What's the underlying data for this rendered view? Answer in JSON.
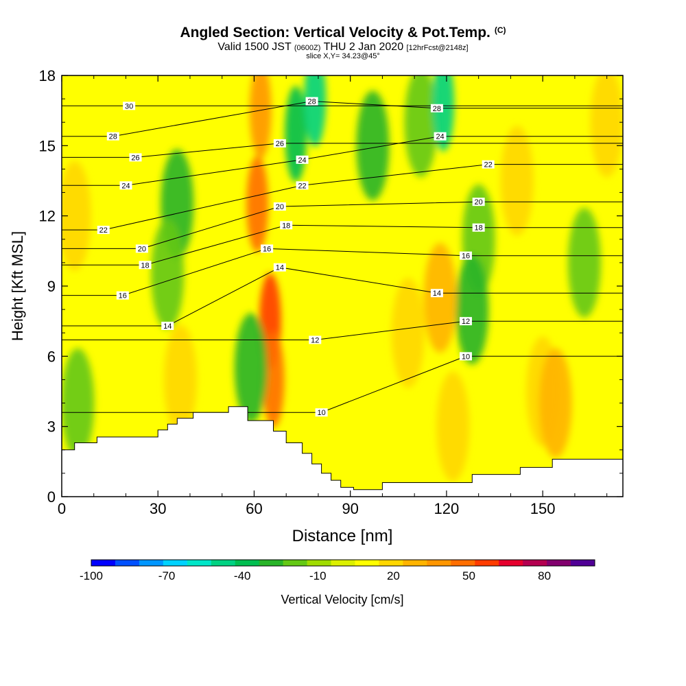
{
  "header": {
    "title": "Angled Section: Vertical Velocity & Pot.Temp.",
    "title_units": "(C)",
    "valid_prefix": "Valid 1500 JST",
    "valid_utc": "(0600Z)",
    "valid_date": "THU 2 Jan 2020",
    "forecast_info": "[12hrFcst@2148z]",
    "slice_info": "slice X,Y= 34.23@45°"
  },
  "chart_data": {
    "type": "heatmap",
    "xlabel": "Distance [nm]",
    "ylabel": "Height [Kft MSL]",
    "xlim": [
      0,
      175
    ],
    "ylim": [
      0,
      18
    ],
    "x_ticks": [
      0,
      30,
      60,
      90,
      120,
      150
    ],
    "y_ticks": [
      0,
      3,
      6,
      9,
      12,
      15,
      18
    ],
    "grid": false,
    "colorbar": {
      "label": "Vertical Velocity [cm/s]",
      "tick_labels": [
        "-100",
        "-70",
        "-40",
        "-10",
        "20",
        "50",
        "80"
      ],
      "tick_values": [
        -100,
        -70,
        -40,
        -10,
        20,
        50,
        80
      ],
      "levels": [
        -100,
        -90,
        -80,
        -70,
        -60,
        -50,
        -40,
        -30,
        -20,
        -10,
        0,
        10,
        20,
        30,
        40,
        50,
        60,
        70,
        80,
        90,
        100
      ],
      "colors": [
        "#0000ff",
        "#0050ff",
        "#0096ff",
        "#00d2ff",
        "#00e6c8",
        "#00d282",
        "#00be50",
        "#28b428",
        "#64c814",
        "#a0dc00",
        "#dcf000",
        "#ffff00",
        "#ffd700",
        "#ffb400",
        "#ff9600",
        "#ff6e00",
        "#ff3c00",
        "#e6002d",
        "#b40050",
        "#82006e",
        "#500096"
      ]
    },
    "terrain_kft": {
      "x": [
        0,
        4,
        4,
        11,
        11,
        30,
        30,
        33,
        33,
        36,
        36,
        41,
        41,
        52,
        52,
        58,
        58,
        66,
        66,
        70,
        70,
        75,
        75,
        78,
        78,
        81,
        81,
        84,
        84,
        87,
        87,
        91,
        91,
        100,
        100,
        128,
        128,
        143,
        143,
        153,
        153,
        159,
        159,
        175
      ],
      "y": [
        2.0,
        2.0,
        2.3,
        2.3,
        2.55,
        2.55,
        2.85,
        2.85,
        3.1,
        3.1,
        3.35,
        3.35,
        3.6,
        3.6,
        3.85,
        3.85,
        3.25,
        3.25,
        2.8,
        2.8,
        2.3,
        2.3,
        1.85,
        1.85,
        1.4,
        1.4,
        1.0,
        1.0,
        0.7,
        0.7,
        0.4,
        0.4,
        0.3,
        0.3,
        0.6,
        0.6,
        0.95,
        0.95,
        1.25,
        1.25,
        1.6,
        1.6,
        1.6,
        1.6
      ]
    },
    "vertical_velocity_features": [
      {
        "x": 62,
        "y": 16.5,
        "value": 45
      },
      {
        "x": 61,
        "y": 12.5,
        "value": 50
      },
      {
        "x": 65,
        "y": 7.5,
        "value": 60
      },
      {
        "x": 66,
        "y": 5.0,
        "value": 50
      },
      {
        "x": 4,
        "y": 12.0,
        "value": 25
      },
      {
        "x": 20,
        "y": 10.0,
        "value": 15
      },
      {
        "x": 36,
        "y": 12.5,
        "value": -25
      },
      {
        "x": 33,
        "y": 9.5,
        "value": -20
      },
      {
        "x": 73,
        "y": 15.5,
        "value": -40
      },
      {
        "x": 79,
        "y": 17.0,
        "value": -50
      },
      {
        "x": 97,
        "y": 15.0,
        "value": -25
      },
      {
        "x": 112,
        "y": 16.0,
        "value": -20
      },
      {
        "x": 119,
        "y": 16.8,
        "value": -45
      },
      {
        "x": 130,
        "y": 11.0,
        "value": -20
      },
      {
        "x": 128,
        "y": 8.0,
        "value": -25
      },
      {
        "x": 163,
        "y": 10.0,
        "value": -15
      },
      {
        "x": 118,
        "y": 8.5,
        "value": 30
      },
      {
        "x": 108,
        "y": 7.0,
        "value": 20
      },
      {
        "x": 150,
        "y": 4.5,
        "value": 25
      },
      {
        "x": 154,
        "y": 4.0,
        "value": 30
      },
      {
        "x": 37,
        "y": 5.0,
        "value": 25
      },
      {
        "x": 142,
        "y": 13.5,
        "value": 20
      },
      {
        "x": 122,
        "y": 3.0,
        "value": 20
      },
      {
        "x": 170,
        "y": 16.0,
        "value": 20
      },
      {
        "x": 5,
        "y": 4.0,
        "value": -20
      },
      {
        "x": 59,
        "y": 5.5,
        "value": -30
      }
    ],
    "isentropes": {
      "levels": [
        30,
        28,
        26,
        24,
        22,
        20,
        18,
        16,
        14,
        12,
        10
      ],
      "labels": [
        {
          "text": "30",
          "x": 21,
          "y": 16.7
        },
        {
          "text": "28",
          "x": 16,
          "y": 15.4
        },
        {
          "text": "26",
          "x": 23,
          "y": 14.5
        },
        {
          "text": "24",
          "x": 20,
          "y": 13.3
        },
        {
          "text": "22",
          "x": 13,
          "y": 11.4
        },
        {
          "text": "20",
          "x": 25,
          "y": 10.6
        },
        {
          "text": "18",
          "x": 26,
          "y": 9.9
        },
        {
          "text": "16",
          "x": 19,
          "y": 8.6
        },
        {
          "text": "14",
          "x": 33,
          "y": 7.3
        },
        {
          "text": "28",
          "x": 78,
          "y": 16.9
        },
        {
          "text": "26",
          "x": 68,
          "y": 15.1
        },
        {
          "text": "24",
          "x": 75,
          "y": 14.4
        },
        {
          "text": "22",
          "x": 75,
          "y": 13.3
        },
        {
          "text": "20",
          "x": 68,
          "y": 12.4
        },
        {
          "text": "18",
          "x": 70,
          "y": 11.6
        },
        {
          "text": "16",
          "x": 64,
          "y": 10.6
        },
        {
          "text": "14",
          "x": 68,
          "y": 9.8
        },
        {
          "text": "12",
          "x": 79,
          "y": 6.7
        },
        {
          "text": "10",
          "x": 81,
          "y": 3.6
        },
        {
          "text": "28",
          "x": 117,
          "y": 16.6
        },
        {
          "text": "24",
          "x": 118,
          "y": 15.4
        },
        {
          "text": "22",
          "x": 133,
          "y": 14.2
        },
        {
          "text": "20",
          "x": 130,
          "y": 12.6
        },
        {
          "text": "18",
          "x": 130,
          "y": 11.5
        },
        {
          "text": "16",
          "x": 126,
          "y": 10.3
        },
        {
          "text": "14",
          "x": 117,
          "y": 8.7
        },
        {
          "text": "12",
          "x": 126,
          "y": 7.5
        },
        {
          "text": "10",
          "x": 126,
          "y": 6.0
        }
      ]
    }
  }
}
